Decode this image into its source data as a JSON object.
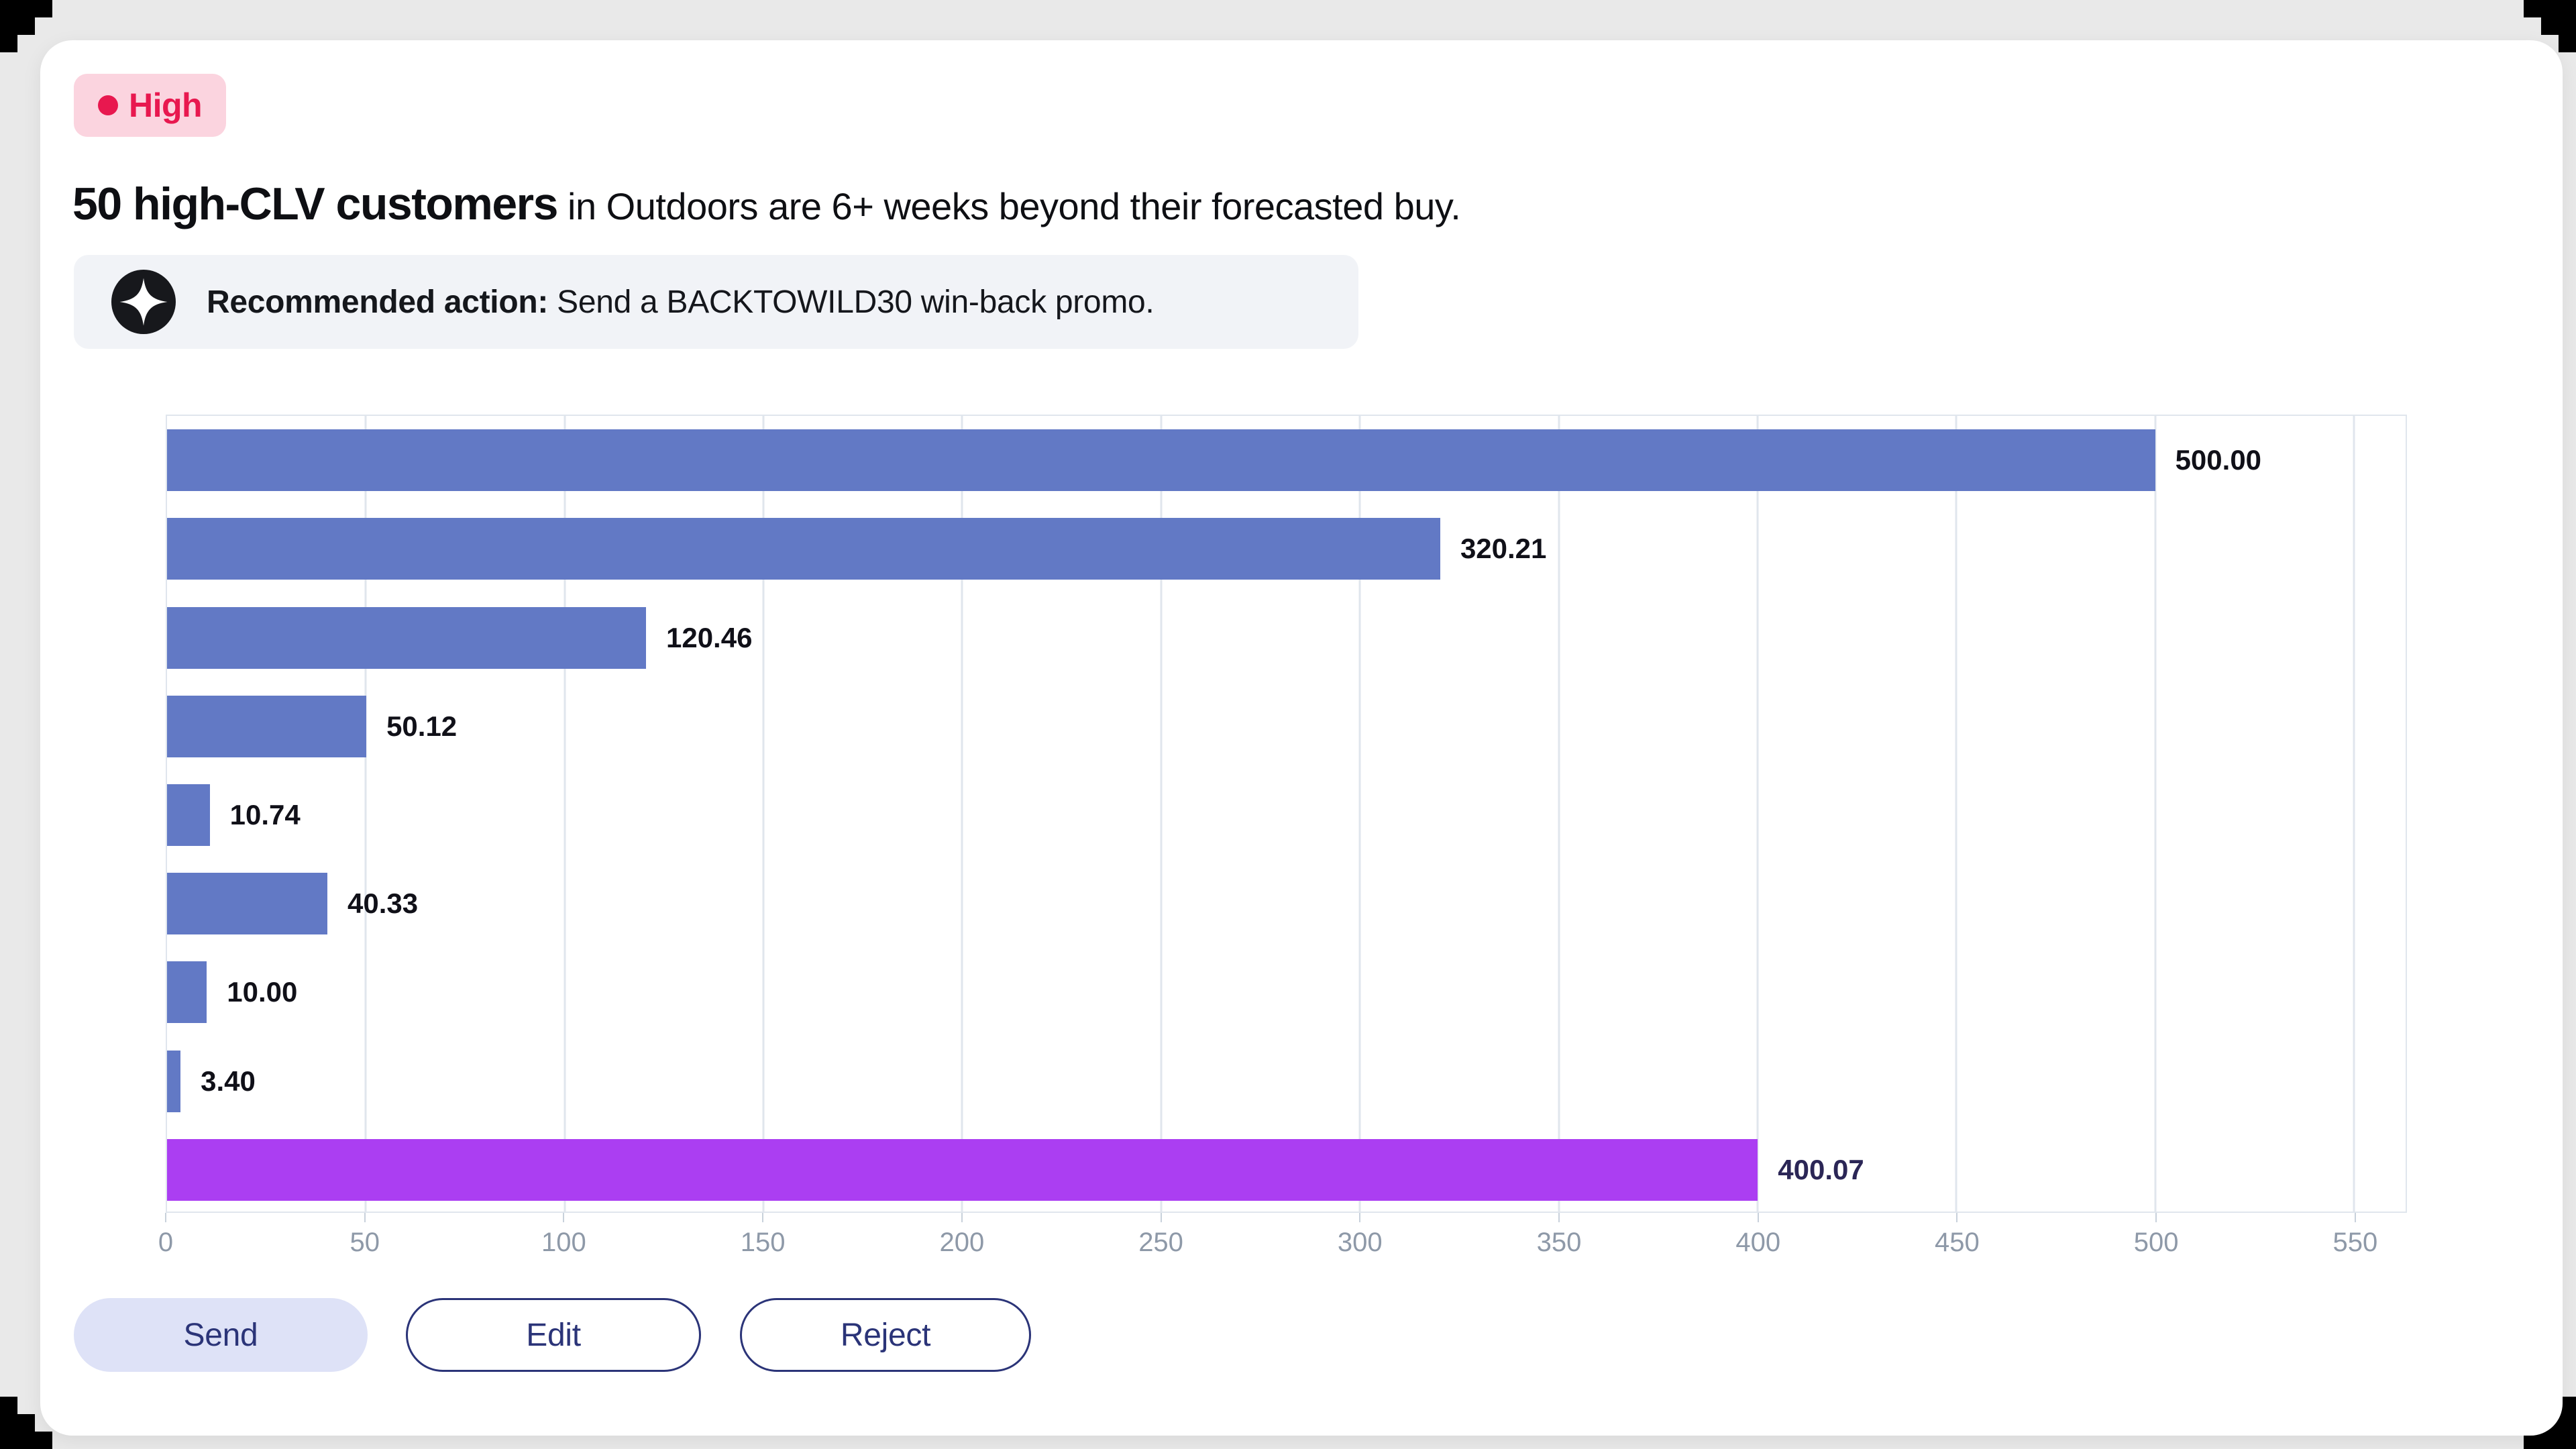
{
  "page": {
    "background": "#E9E9E9",
    "corner_mark_color": "#000000"
  },
  "card": {
    "background": "#FFFFFF"
  },
  "badge": {
    "label": "High",
    "background": "#FBD4DF",
    "color": "#E8184F"
  },
  "headline": {
    "emphasis": "50 high-CLV customers",
    "rest": "in Outdoors are 6+ weeks beyond their forecasted buy."
  },
  "action": {
    "label": "Recommended action:",
    "text": "Send a BACKTOWILD30 win-back promo.",
    "background": "#F1F3F7",
    "icon": "sparkle-icon",
    "icon_bg": "#17181C",
    "icon_star": "#FFFFFF"
  },
  "buttons": {
    "send": "Send",
    "edit": "Edit",
    "reject": "Reject",
    "accent": "#2B3478",
    "send_bg": "#DEE2F7"
  },
  "chart_data": {
    "type": "bar",
    "orientation": "horizontal",
    "title": "",
    "xlabel": "",
    "ylabel": "",
    "values": [
      500.0,
      320.21,
      120.46,
      50.12,
      10.74,
      40.33,
      10.0,
      3.4,
      400.07
    ],
    "value_labels": [
      "500.00",
      "320.21",
      "120.46",
      "50.12",
      "10.74",
      "40.33",
      "10.00",
      "3.40",
      "400.07"
    ],
    "bar_colors": [
      "#6279C5",
      "#6279C5",
      "#6279C5",
      "#6279C5",
      "#6279C5",
      "#6279C5",
      "#6279C5",
      "#6279C5",
      "#AB3EF2"
    ],
    "value_label_colors": [
      "#101018",
      "#101018",
      "#101018",
      "#101018",
      "#101018",
      "#101018",
      "#101018",
      "#101018",
      "#2B2656"
    ],
    "xticks": [
      0,
      50,
      100,
      150,
      200,
      250,
      300,
      350,
      400,
      450,
      500,
      550
    ],
    "xlim": [
      0,
      563
    ],
    "grid": true,
    "grid_color": "#E0E6ED",
    "tick_color": "#8E99A8",
    "legend": false
  }
}
